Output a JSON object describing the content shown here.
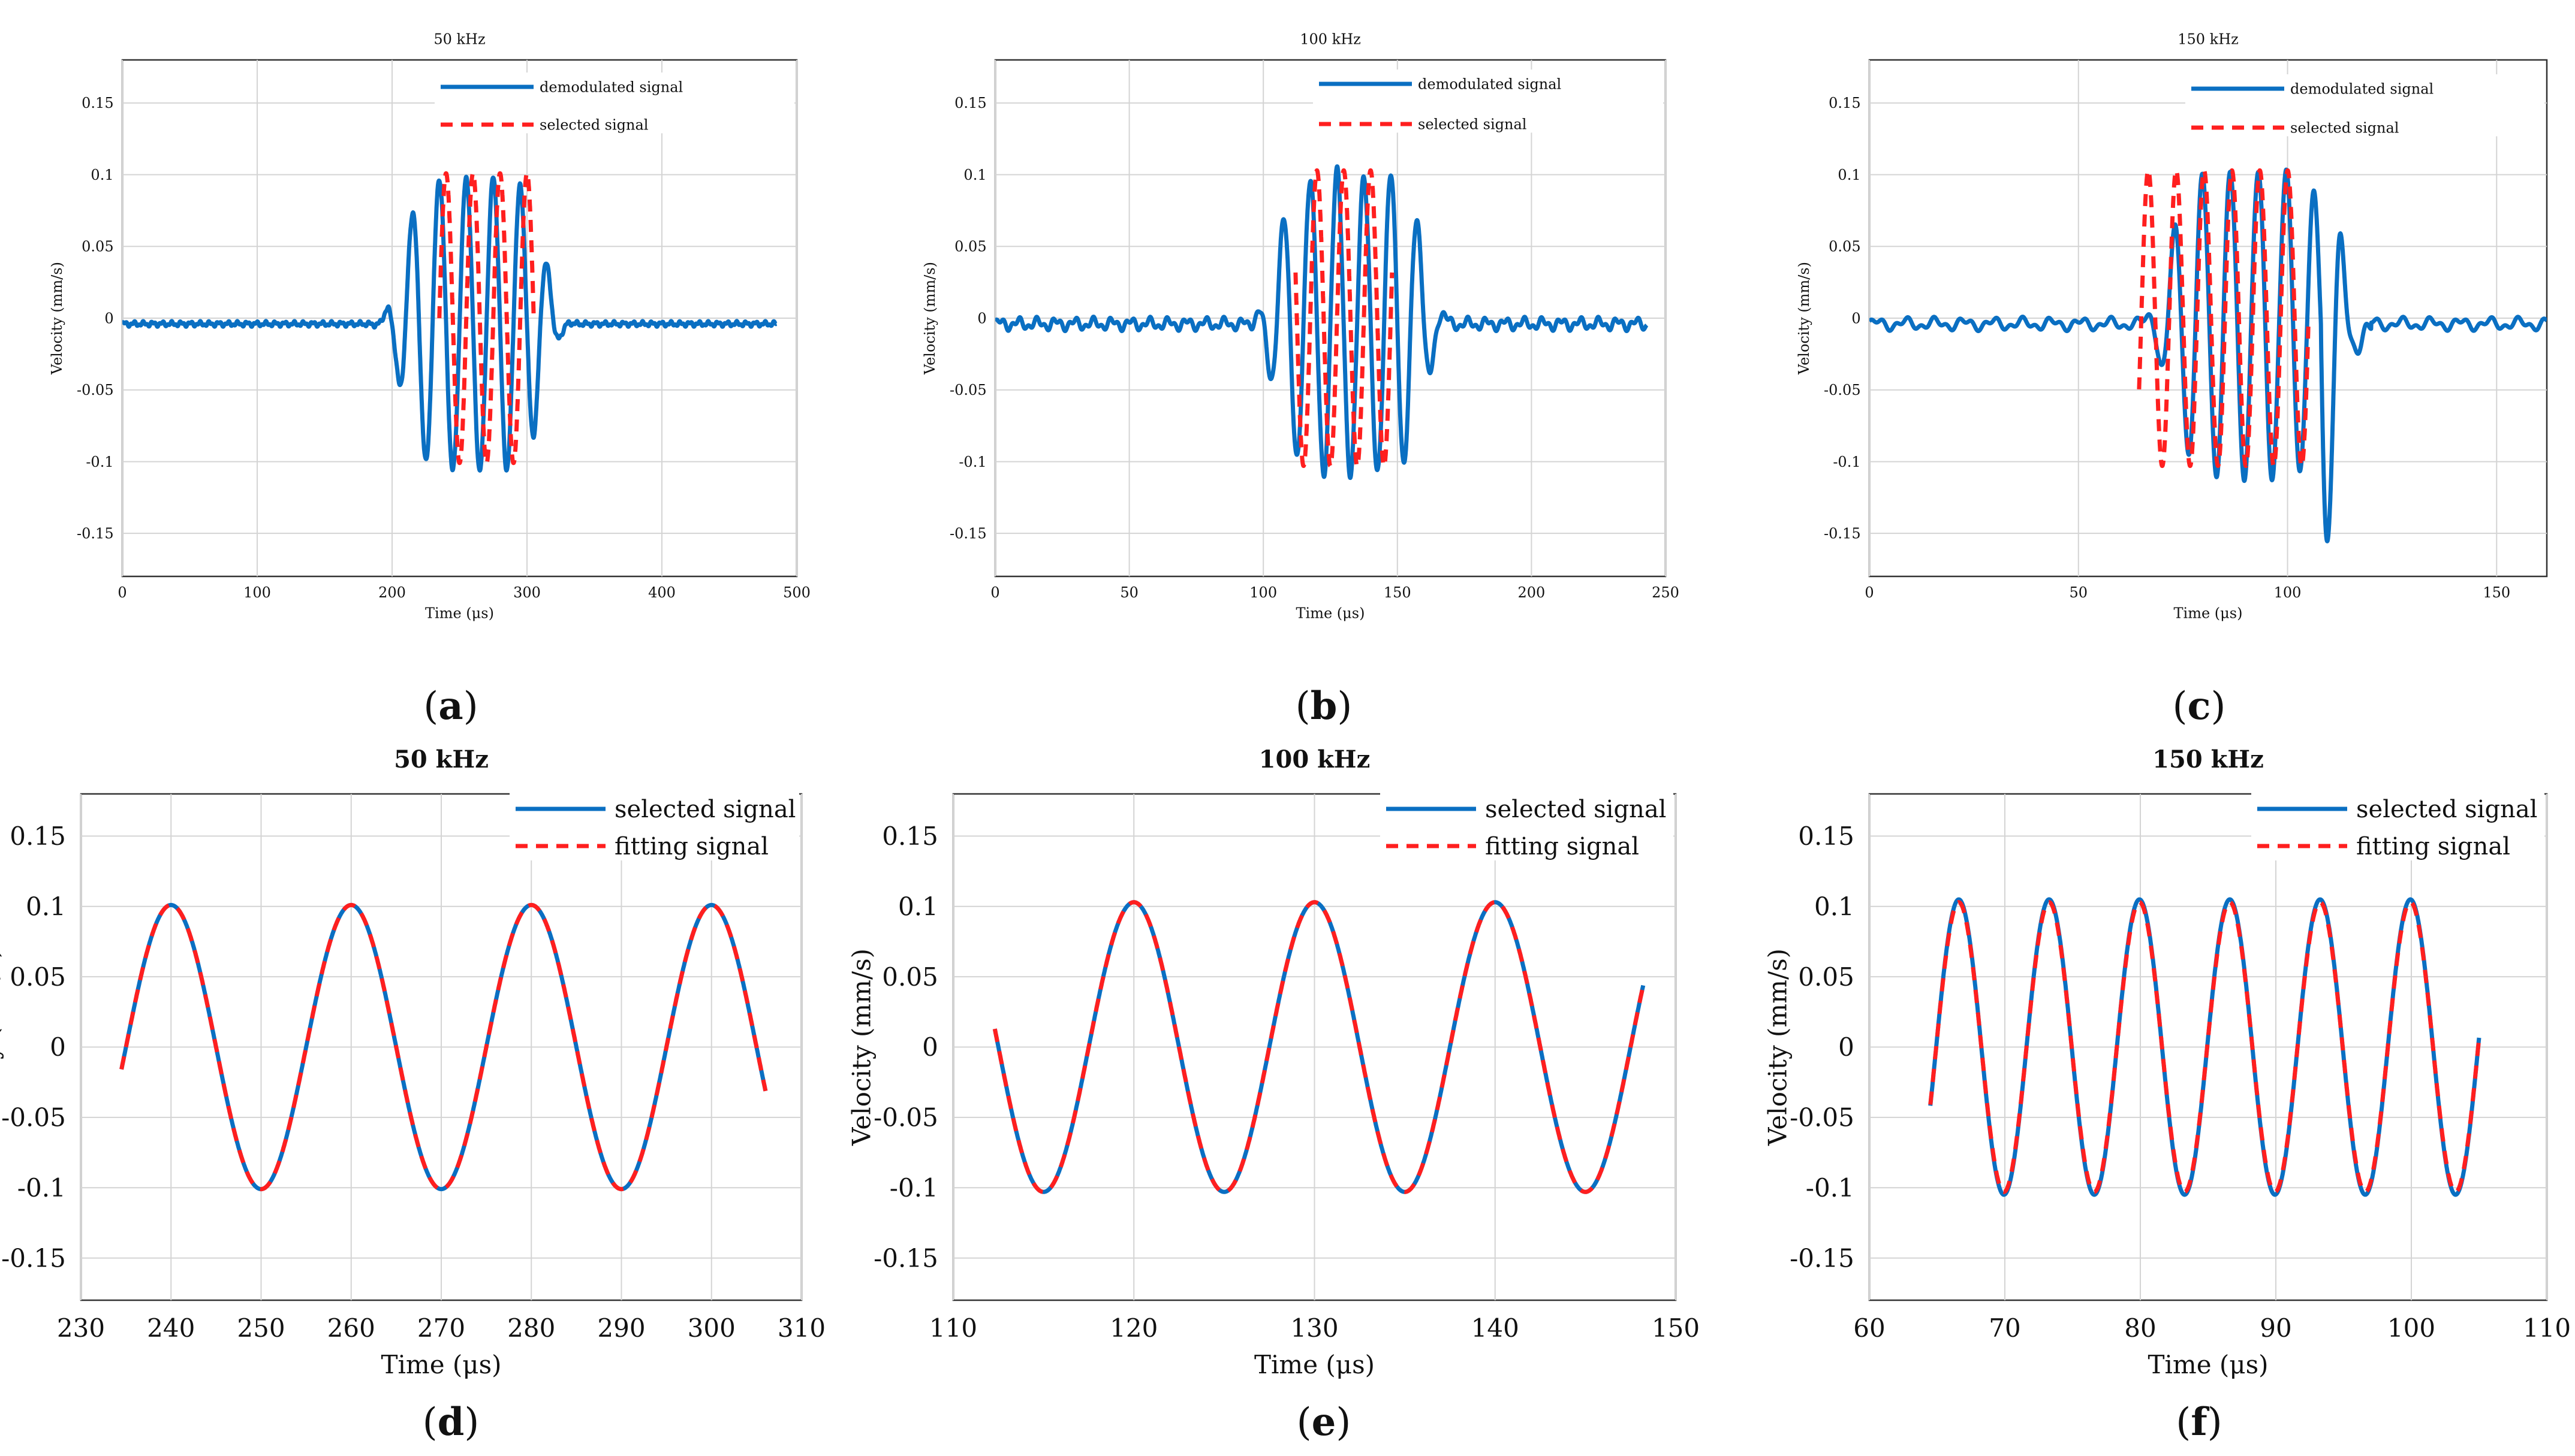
{
  "figure": {
    "panel_letters": [
      "a",
      "b",
      "c",
      "d",
      "e",
      "f"
    ]
  },
  "colors": {
    "signal_blue": "#0a6fc2",
    "fit_red": "#ff1f1f",
    "grid": "#d4d4d4",
    "axis": "#333333"
  },
  "chart_data": [
    {
      "type": "line",
      "panel": "a",
      "title": "50 kHz",
      "xlabel": "Time (μs)",
      "ylabel": "Velocity (mm/s)",
      "xlim": [
        0,
        500
      ],
      "ylim": [
        -0.18,
        0.18
      ],
      "xticks": [
        0,
        100,
        200,
        300,
        400,
        500
      ],
      "yticks": [
        0.15,
        0.1,
        0.05,
        0,
        -0.05,
        -0.1,
        -0.15
      ],
      "ytick_labels": [
        "0.15",
        "0.1",
        "0.05",
        "0",
        "-0.05",
        "-0.1",
        "-0.15"
      ],
      "legend": [
        "demodulated signal",
        "selected signal"
      ],
      "series": [
        {
          "name": "demodulated signal",
          "style": "solid",
          "color": "#0a6fc2",
          "burst": {
            "t_start": 170,
            "t_end": 350,
            "freq_mhz": 0.05,
            "amplitude": 0.102,
            "envelope": "gaussian",
            "noise": 0.002,
            "range": [
              0,
              485
            ]
          }
        },
        {
          "name": "selected signal",
          "style": "dashed",
          "color": "#ff1f1f",
          "sine": {
            "t_start": 235,
            "t_end": 305,
            "freq_mhz": 0.05,
            "amplitude": 0.101,
            "peak_at": 240
          }
        }
      ]
    },
    {
      "type": "line",
      "panel": "b",
      "title": "100 kHz",
      "xlabel": "Time (μs)",
      "ylabel": "Velocity (mm/s)",
      "xlim": [
        0,
        250
      ],
      "ylim": [
        -0.18,
        0.18
      ],
      "xticks": [
        0,
        50,
        100,
        150,
        200,
        250
      ],
      "yticks": [
        0.15,
        0.1,
        0.05,
        0,
        -0.05,
        -0.1,
        -0.15
      ],
      "ytick_labels": [
        "0.15",
        "0.1",
        "0.05",
        "0",
        "-0.05",
        "-0.1",
        "-0.15"
      ],
      "legend": [
        "demodulated signal",
        "selected signal"
      ],
      "series": [
        {
          "name": "demodulated signal",
          "style": "solid",
          "color": "#0a6fc2",
          "burst": {
            "t_start": 85,
            "t_end": 180,
            "freq_mhz": 0.1,
            "amplitude": 0.105,
            "envelope": "gaussian",
            "noise": 0.005,
            "range": [
              0,
              243
            ]
          }
        },
        {
          "name": "selected signal",
          "style": "dashed",
          "color": "#ff1f1f",
          "sine": {
            "t_start": 112,
            "t_end": 148,
            "freq_mhz": 0.1,
            "amplitude": 0.103,
            "peak_at": 120
          }
        }
      ]
    },
    {
      "type": "line",
      "panel": "c",
      "title": "150 kHz",
      "xlabel": "Time (μs)",
      "ylabel": "Velocity (mm/s)",
      "xlim": [
        0,
        162
      ],
      "ylim": [
        -0.18,
        0.18
      ],
      "xticks": [
        0,
        50,
        100,
        150
      ],
      "yticks": [
        0.15,
        0.1,
        0.05,
        0,
        -0.05,
        -0.1,
        -0.15
      ],
      "ytick_labels": [
        "0.15",
        "0.1",
        "0.05",
        "0",
        "-0.05",
        "-0.1",
        "-0.15"
      ],
      "legend": [
        "demodulated signal",
        "selected signal"
      ],
      "series": [
        {
          "name": "demodulated signal",
          "style": "solid",
          "color": "#0a6fc2",
          "burst": {
            "t_start": 58,
            "t_end": 124,
            "freq_mhz": 0.15,
            "amplitude": 0.105,
            "envelope": "gaussian",
            "noise": 0.005,
            "range": [
              0,
              162
            ],
            "clip_region": [
              108,
              120
            ]
          }
        },
        {
          "name": "selected signal",
          "style": "dashed",
          "color": "#ff1f1f",
          "sine": {
            "t_start": 64.5,
            "t_end": 105,
            "freq_mhz": 0.15,
            "amplitude": 0.103,
            "peak_at": 66.7
          }
        }
      ]
    },
    {
      "type": "line",
      "panel": "d",
      "title": "50 kHz",
      "xlabel": "Time (μs)",
      "ylabel": "Velocity (mm/s)",
      "xlim": [
        230,
        310
      ],
      "ylim": [
        -0.18,
        0.18
      ],
      "xticks": [
        230,
        240,
        250,
        260,
        270,
        280,
        290,
        300,
        310
      ],
      "yticks": [
        0.15,
        0.1,
        0.05,
        0,
        -0.05,
        -0.1,
        -0.15
      ],
      "ytick_labels": [
        "0.15",
        "0.1",
        "0.05",
        "0",
        "-0.05",
        "-0.1",
        "-0.15"
      ],
      "legend": [
        "selected signal",
        "fitting signal"
      ],
      "series": [
        {
          "name": "selected signal",
          "style": "solid",
          "color": "#0a6fc2",
          "sine": {
            "t_start": 234.5,
            "t_end": 306,
            "freq_mhz": 0.05,
            "amplitude": 0.101,
            "peak_at": 240
          }
        },
        {
          "name": "fitting signal",
          "style": "dashed",
          "color": "#ff1f1f",
          "sine": {
            "t_start": 234.5,
            "t_end": 306,
            "freq_mhz": 0.05,
            "amplitude": 0.101,
            "peak_at": 240
          }
        }
      ]
    },
    {
      "type": "line",
      "panel": "e",
      "title": "100 kHz",
      "xlabel": "Time (μs)",
      "ylabel": "Velocity (mm/s)",
      "xlim": [
        110,
        150
      ],
      "ylim": [
        -0.18,
        0.18
      ],
      "xticks": [
        110,
        120,
        130,
        140,
        150
      ],
      "yticks": [
        0.15,
        0.1,
        0.05,
        0,
        -0.05,
        -0.1,
        -0.15
      ],
      "ytick_labels": [
        "0.15",
        "0.1",
        "0.05",
        "0",
        "-0.05",
        "-0.1",
        "-0.15"
      ],
      "legend": [
        "selected signal",
        "fitting signal"
      ],
      "series": [
        {
          "name": "selected signal",
          "style": "solid",
          "color": "#0a6fc2",
          "sine": {
            "t_start": 112.3,
            "t_end": 148.2,
            "freq_mhz": 0.1,
            "amplitude": 0.103,
            "peak_at": 120
          }
        },
        {
          "name": "fitting signal",
          "style": "dashed",
          "color": "#ff1f1f",
          "sine": {
            "t_start": 112.3,
            "t_end": 148.2,
            "freq_mhz": 0.1,
            "amplitude": 0.103,
            "peak_at": 120
          }
        }
      ]
    },
    {
      "type": "line",
      "panel": "f",
      "title": "150 kHz",
      "xlabel": "Time (μs)",
      "ylabel": "Velocity (mm/s)",
      "xlim": [
        60,
        110
      ],
      "ylim": [
        -0.18,
        0.18
      ],
      "xticks": [
        60,
        70,
        80,
        90,
        100,
        110
      ],
      "yticks": [
        0.15,
        0.1,
        0.05,
        0,
        -0.05,
        -0.1,
        -0.15
      ],
      "ytick_labels": [
        "0.15",
        "0.1",
        "0.05",
        "0",
        "-0.05",
        "-0.1",
        "-0.15"
      ],
      "legend": [
        "selected signal",
        "fitting signal"
      ],
      "series": [
        {
          "name": "selected signal",
          "style": "solid",
          "color": "#0a6fc2",
          "sine": {
            "t_start": 64.5,
            "t_end": 105,
            "freq_mhz": 0.15,
            "amplitude": 0.105,
            "peak_at": 66.6
          }
        },
        {
          "name": "fitting signal",
          "style": "dashed",
          "color": "#ff1f1f",
          "sine": {
            "t_start": 64.5,
            "t_end": 105,
            "freq_mhz": 0.15,
            "amplitude": 0.103,
            "peak_at": 66.6
          }
        }
      ]
    }
  ]
}
